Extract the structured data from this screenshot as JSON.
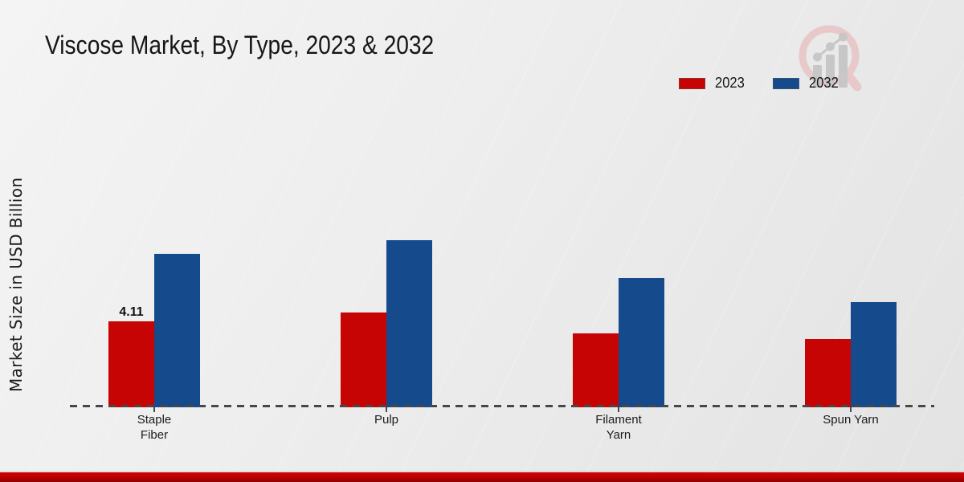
{
  "chart_data": {
    "type": "bar",
    "title": "Viscose Market, By Type, 2023 & 2032",
    "ylabel": "Market Size in USD Billion",
    "xlabel": "",
    "categories": [
      "Staple Fiber",
      "Pulp",
      "Filament Yarn",
      "Spun Yarn"
    ],
    "categories_wrapped": [
      [
        "Staple",
        "Fiber"
      ],
      [
        "Pulp"
      ],
      [
        "Filament",
        "Yarn"
      ],
      [
        "Spun Yarn"
      ]
    ],
    "series": [
      {
        "name": "2023",
        "color": "#c70404",
        "values": [
          4.11,
          4.55,
          3.55,
          3.25
        ]
      },
      {
        "name": "2032",
        "color": "#154a8d",
        "values": [
          7.35,
          8.0,
          6.2,
          5.05
        ]
      }
    ],
    "annotations": [
      {
        "series_index": 0,
        "category_index": 0,
        "text": "4.11"
      }
    ],
    "ylim": [
      0,
      10
    ],
    "grid": false,
    "legend_position": "top-right",
    "baseline_style": "dashed",
    "y_tick_labels_visible": false
  },
  "branding": {
    "watermark_icon": "magnifier-growth-chart",
    "accent_bar_color": "#c00000"
  }
}
